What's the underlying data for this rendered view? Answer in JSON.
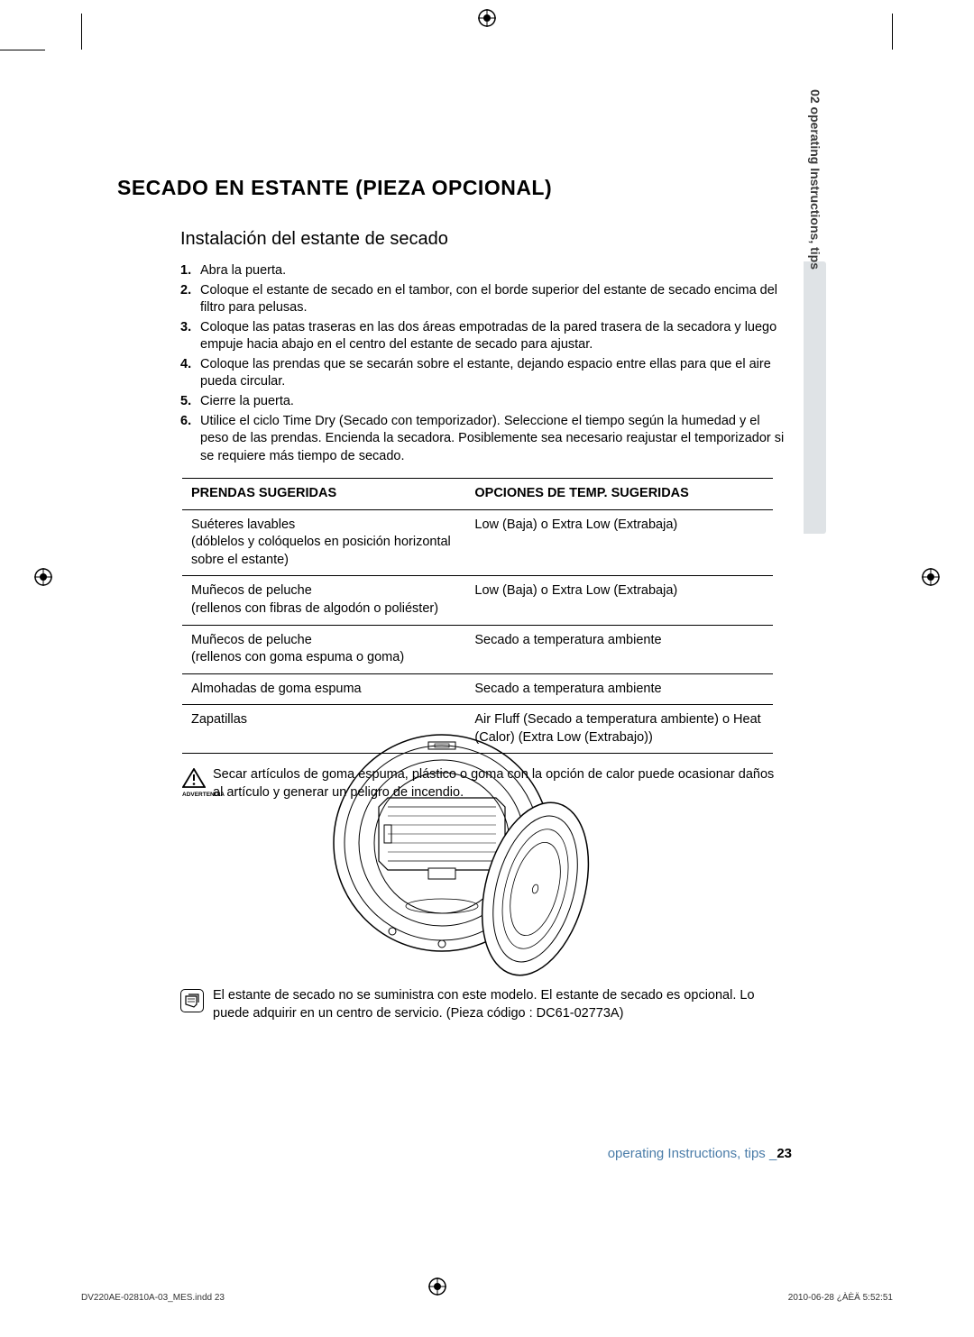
{
  "heading": "SECADO EN ESTANTE (PIEZA OPCIONAL)",
  "subheading": "Instalación del estante de secado",
  "steps": [
    {
      "n": "1.",
      "t": "Abra la puerta."
    },
    {
      "n": "2.",
      "t": "Coloque el estante de secado en el tambor, con el borde superior del estante de secado encima del filtro para pelusas."
    },
    {
      "n": "3.",
      "t": "Coloque las patas traseras en las dos áreas empotradas de la pared trasera de la secadora y luego empuje hacia abajo en el centro del estante de secado para ajustar."
    },
    {
      "n": "4.",
      "t": "Coloque las prendas que se secarán sobre el estante, dejando espacio entre ellas para que el aire pueda circular."
    },
    {
      "n": "5.",
      "t": "Cierre la puerta."
    },
    {
      "n": "6.",
      "t": "Utilice el ciclo Time Dry (Secado con temporizador). Seleccione el tiempo según la humedad y el peso de las prendas. Encienda la secadora. Posiblemente sea necesario reajustar el temporizador si se requiere más tiempo de secado."
    }
  ],
  "table": {
    "headers": [
      "PRENDAS SUGERIDAS",
      "OPCIONES DE TEMP. SUGERIDAS"
    ],
    "rows": [
      [
        "Suéteres lavables\n(dóblelos y colóquelos en posición horizontal sobre el estante)",
        "Low (Baja) o Extra Low (Extrabaja)"
      ],
      [
        "Muñecos de peluche\n(rellenos con fibras de algodón o poliéster)",
        "Low (Baja) o Extra Low (Extrabaja)"
      ],
      [
        "Muñecos de peluche\n(rellenos con goma espuma o goma)",
        "Secado a temperatura ambiente"
      ],
      [
        "Almohadas de goma espuma",
        "Secado a temperatura ambiente"
      ],
      [
        "Zapatillas",
        "Air Fluff (Secado a temperatura ambiente) o Heat (Calor) (Extra Low (Extrabajo))"
      ]
    ]
  },
  "warning": {
    "label": "ADVERTENCIA",
    "text": "Secar artículos de goma espuma, plástico o goma con la opción de calor puede ocasionar daños al artículo y generar un peligro de incendio."
  },
  "note": {
    "text": "El estante de secado no se suministra con este modelo. El estante de secado es opcional. Lo puede adquirir en un centro de servicio. (Pieza código : DC61-02773A)"
  },
  "sideTab": "02 operating Instructions, tips",
  "footer": {
    "label": "operating Instructions, tips _",
    "page": "23",
    "left": "DV220AE-02810A-03_MES.indd   23",
    "right": "2010-06-28   ¿ÀÈÄ 5:52:51"
  },
  "colors": {
    "text": "#000000",
    "footerBlue": "#4a7ca8",
    "sideTabBg": "#dfe3e6",
    "sideTabText": "#3a3a3a"
  }
}
